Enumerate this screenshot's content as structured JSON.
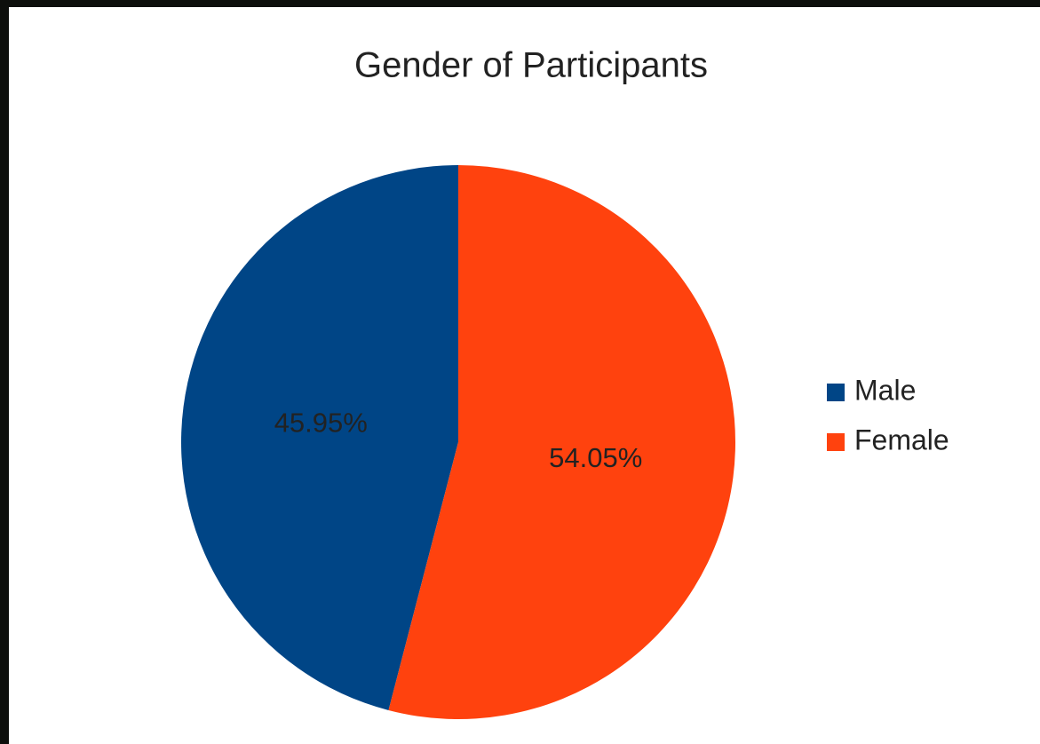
{
  "chart_data": {
    "type": "pie",
    "title": "Gender of Participants",
    "categories": [
      "Male",
      "Female"
    ],
    "values": [
      45.95,
      54.05
    ],
    "value_labels": [
      "45.95%",
      "54.05%"
    ],
    "colors": [
      "#004586",
      "#ff420e"
    ],
    "legend": "right"
  }
}
